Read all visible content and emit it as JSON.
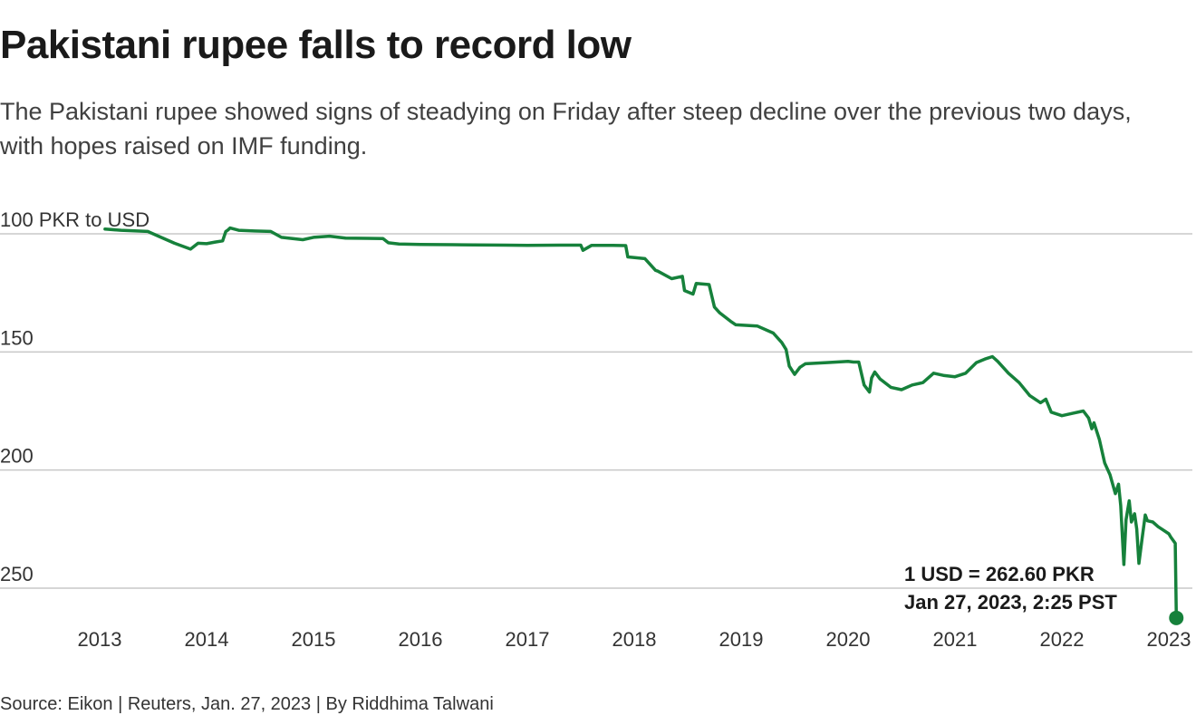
{
  "title": "Pakistani rupee falls to record low",
  "subtitle": "The Pakistani rupee showed signs of steadying on Friday after steep decline over the previous two days, with hopes raised on IMF funding.",
  "source": "Source: Eikon | Reuters, Jan. 27, 2023 | By Riddhima Talwani",
  "colors": {
    "line": "#16813b",
    "grid": "#c8c8c8",
    "axis_text": "#333333"
  },
  "chart_data": {
    "type": "line",
    "ylabel": "100 PKR to USD",
    "y_tick_values": [
      100,
      150,
      200,
      250
    ],
    "y_tick_labels": [
      "100 PKR to USD",
      "150",
      "200",
      "250"
    ],
    "ylim": [
      100,
      262.6
    ],
    "y_inverted": true,
    "xlim": [
      2013.0,
      2023.07
    ],
    "x_tick_values": [
      2013,
      2014,
      2015,
      2016,
      2017,
      2018,
      2019,
      2020,
      2021,
      2022,
      2023
    ],
    "x_tick_labels": [
      "2013",
      "2014",
      "2015",
      "2016",
      "2017",
      "2018",
      "2019",
      "2020",
      "2021",
      "2022",
      "2023"
    ],
    "grid": true,
    "series": [
      {
        "x": [
          2013.05,
          2013.2,
          2013.45,
          2013.55,
          2013.7,
          2013.85,
          2013.92,
          2014.0,
          2014.08,
          2014.15,
          2014.18,
          2014.2,
          2014.22,
          2014.3,
          2014.45,
          2014.6,
          2014.7,
          2014.9,
          2015.0,
          2015.15,
          2015.3,
          2015.5,
          2015.65,
          2015.7,
          2015.8,
          2016.0,
          2016.3,
          2016.5,
          2016.8,
          2017.0,
          2017.3,
          2017.5,
          2017.52,
          2017.6,
          2017.8,
          2017.92,
          2017.94,
          2018.1,
          2018.2,
          2018.22,
          2018.35,
          2018.45,
          2018.47,
          2018.55,
          2018.58,
          2018.7,
          2018.75,
          2018.8,
          2018.9,
          2018.95,
          2019.15,
          2019.3,
          2019.38,
          2019.42,
          2019.45,
          2019.5,
          2019.55,
          2019.6,
          2019.8,
          2020.0,
          2020.05,
          2020.1,
          2020.15,
          2020.2,
          2020.22,
          2020.25,
          2020.3,
          2020.4,
          2020.5,
          2020.6,
          2020.7,
          2020.8,
          2020.9,
          2021.0,
          2021.1,
          2021.2,
          2021.28,
          2021.35,
          2021.4,
          2021.5,
          2021.6,
          2021.7,
          2021.8,
          2021.85,
          2021.9,
          2022.0,
          2022.1,
          2022.2,
          2022.25,
          2022.28,
          2022.3,
          2022.35,
          2022.4,
          2022.45,
          2022.5,
          2022.53,
          2022.55,
          2022.58,
          2022.6,
          2022.63,
          2022.65,
          2022.68,
          2022.7,
          2022.72,
          2022.75,
          2022.78,
          2022.8,
          2022.85,
          2022.9,
          2022.95,
          2023.0,
          2023.02,
          2023.06,
          2023.07
        ],
        "y": [
          98.0,
          98.5,
          99.0,
          101.0,
          104.0,
          106.5,
          104.0,
          104.2,
          103.5,
          103.0,
          99.0,
          98.4,
          97.5,
          98.5,
          98.8,
          99.0,
          101.5,
          102.5,
          101.5,
          101.0,
          101.8,
          101.9,
          102.0,
          103.8,
          104.3,
          104.5,
          104.6,
          104.7,
          104.8,
          104.9,
          104.8,
          104.8,
          107.0,
          104.9,
          104.9,
          105.0,
          109.8,
          110.5,
          115.5,
          115.8,
          119.0,
          118.0,
          124.0,
          125.5,
          121.0,
          121.5,
          131.0,
          133.5,
          137.0,
          138.5,
          139.0,
          142.0,
          146.0,
          149.0,
          156.0,
          159.5,
          156.5,
          155.0,
          154.5,
          154.0,
          154.3,
          154.3,
          164.0,
          167.0,
          161.0,
          158.5,
          161.5,
          165.0,
          166.0,
          164.0,
          163.0,
          159.0,
          160.0,
          160.5,
          159.0,
          154.5,
          153.0,
          152.0,
          154.0,
          159.0,
          163.0,
          168.5,
          171.5,
          170.0,
          175.5,
          177.0,
          176.0,
          175.0,
          178.0,
          182.5,
          180.0,
          187.0,
          197.0,
          202.0,
          210.0,
          206.0,
          215.0,
          240.0,
          221.0,
          213.0,
          222.0,
          218.5,
          225.0,
          239.5,
          229.0,
          219.0,
          221.5,
          222.0,
          224.0,
          225.5,
          227.0,
          228.5,
          231.0,
          262.6
        ]
      }
    ],
    "endpoint": {
      "x": 2023.07,
      "y": 262.6
    },
    "annotation": {
      "line1": "1 USD = 262.60 PKR",
      "line2": "Jan 27, 2023, 2:25 PST"
    }
  }
}
